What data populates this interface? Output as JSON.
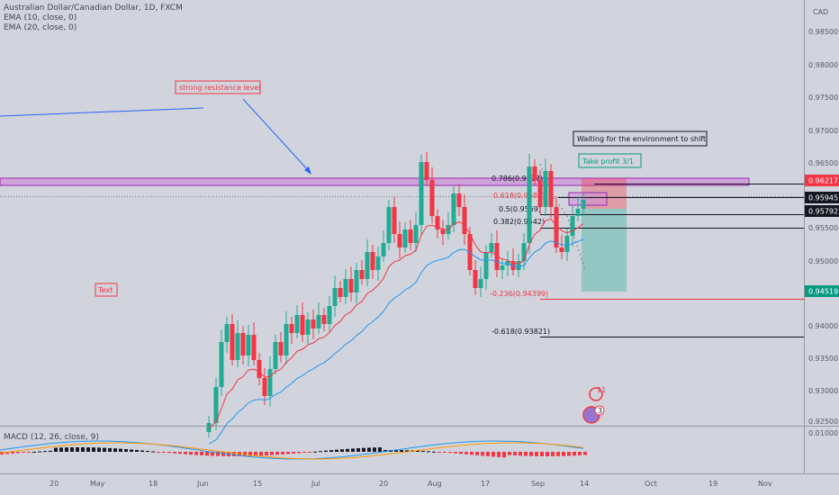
{
  "legend": {
    "symbol": "Australian Dollar/Canadian Dollar, 1D, FXCM",
    "ema10": "EMA (10, close, 0)",
    "ema20": "EMA (20, close, 0)",
    "macd": "MACD (12, 26, close, 9)"
  },
  "currency_label": "CAD",
  "price_axis": [
    "0.98500",
    "0.98000",
    "0.97500",
    "0.97000",
    "0.96500",
    "0.95500",
    "0.95000",
    "0.94000",
    "0.93500",
    "0.93000",
    "0.92500"
  ],
  "macd_axis": "0.01000",
  "price_tags": [
    {
      "label": "0.96217",
      "color": "#f23645",
      "text_color": "#ffffff"
    },
    {
      "label": "0.95945",
      "color": "#131722",
      "text_color": "#ffffff"
    },
    {
      "label": "0.95792",
      "color": "#131722",
      "text_color": "#ffffff"
    },
    {
      "label": "0.94519",
      "color": "#089981",
      "text_color": "#ffffff"
    }
  ],
  "time_axis": [
    "20",
    "May",
    "18",
    "Jun",
    "15",
    "Jul",
    "20",
    "Aug",
    "17",
    "Sep",
    "14",
    "Oct",
    "19",
    "Nov"
  ],
  "annotations": {
    "resistance": "strong resistance level",
    "waiting": "Waiting for the environment to shift",
    "take_profit": "Take profit 3/1",
    "text": "Text"
  },
  "fib": [
    {
      "label": "0.786(0.9617)",
      "color": "#131722"
    },
    {
      "label": "0.618(0.9586)",
      "color": "#f23645"
    },
    {
      "label": "0.5(0.9569)",
      "color": "#131722"
    },
    {
      "label": "0.382(0.9542)",
      "color": "#131722"
    },
    {
      "label": "-0.236(0.94399)",
      "color": "#f23645"
    },
    {
      "label": "-0.618(0.93821)",
      "color": "#131722"
    }
  ],
  "markers": {
    "badge_11": "11",
    "badge_3": "3"
  },
  "colors": {
    "up": "#22ab94",
    "down": "#f23645",
    "ema_fast": "#f23645",
    "ema_slow": "#2196f3",
    "resistance_zone": "#e1bee7",
    "resistance_border": "#9c27b0"
  }
}
